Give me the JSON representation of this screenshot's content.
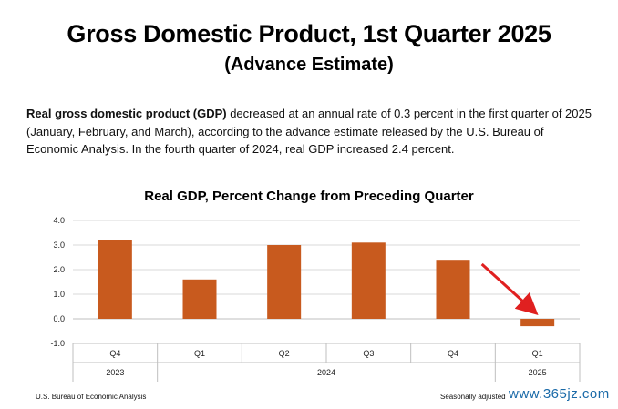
{
  "header": {
    "title": "Gross Domestic Product, 1st Quarter 2025",
    "subtitle": "(Advance Estimate)"
  },
  "summary": {
    "lead": "Real gross domestic product (GDP)",
    "body": " decreased at an annual rate of 0.3 percent in the first quarter of 2025 (January, February, and March), according to the advance estimate released by the U.S. Bureau of Economic Analysis. In the fourth quarter of 2024, real GDP increased 2.4 percent."
  },
  "chart_data": {
    "type": "bar",
    "title": "Real GDP, Percent Change from Preceding Quarter",
    "categories": [
      "Q4",
      "Q1",
      "Q2",
      "Q3",
      "Q4",
      "Q1"
    ],
    "years": [
      {
        "label": "2023",
        "span": [
          0,
          0
        ]
      },
      {
        "label": "2024",
        "span": [
          1,
          4
        ]
      },
      {
        "label": "2025",
        "span": [
          5,
          5
        ]
      }
    ],
    "values": [
      3.2,
      1.6,
      3.0,
      3.1,
      2.4,
      -0.3
    ],
    "ylim": [
      -1.0,
      4.0
    ],
    "yticks": [
      "4.0",
      "3.0",
      "2.0",
      "1.0",
      "0.0",
      "-1.0"
    ],
    "grid": true,
    "bar_color": "#c85a1e",
    "annotation": {
      "type": "arrow",
      "target_index": 5,
      "color": "#e02020"
    }
  },
  "footer": {
    "source": "U.S. Bureau of Economic Analysis",
    "note": "Seasonally adjusted",
    "watermark": "www.365jz.com"
  }
}
